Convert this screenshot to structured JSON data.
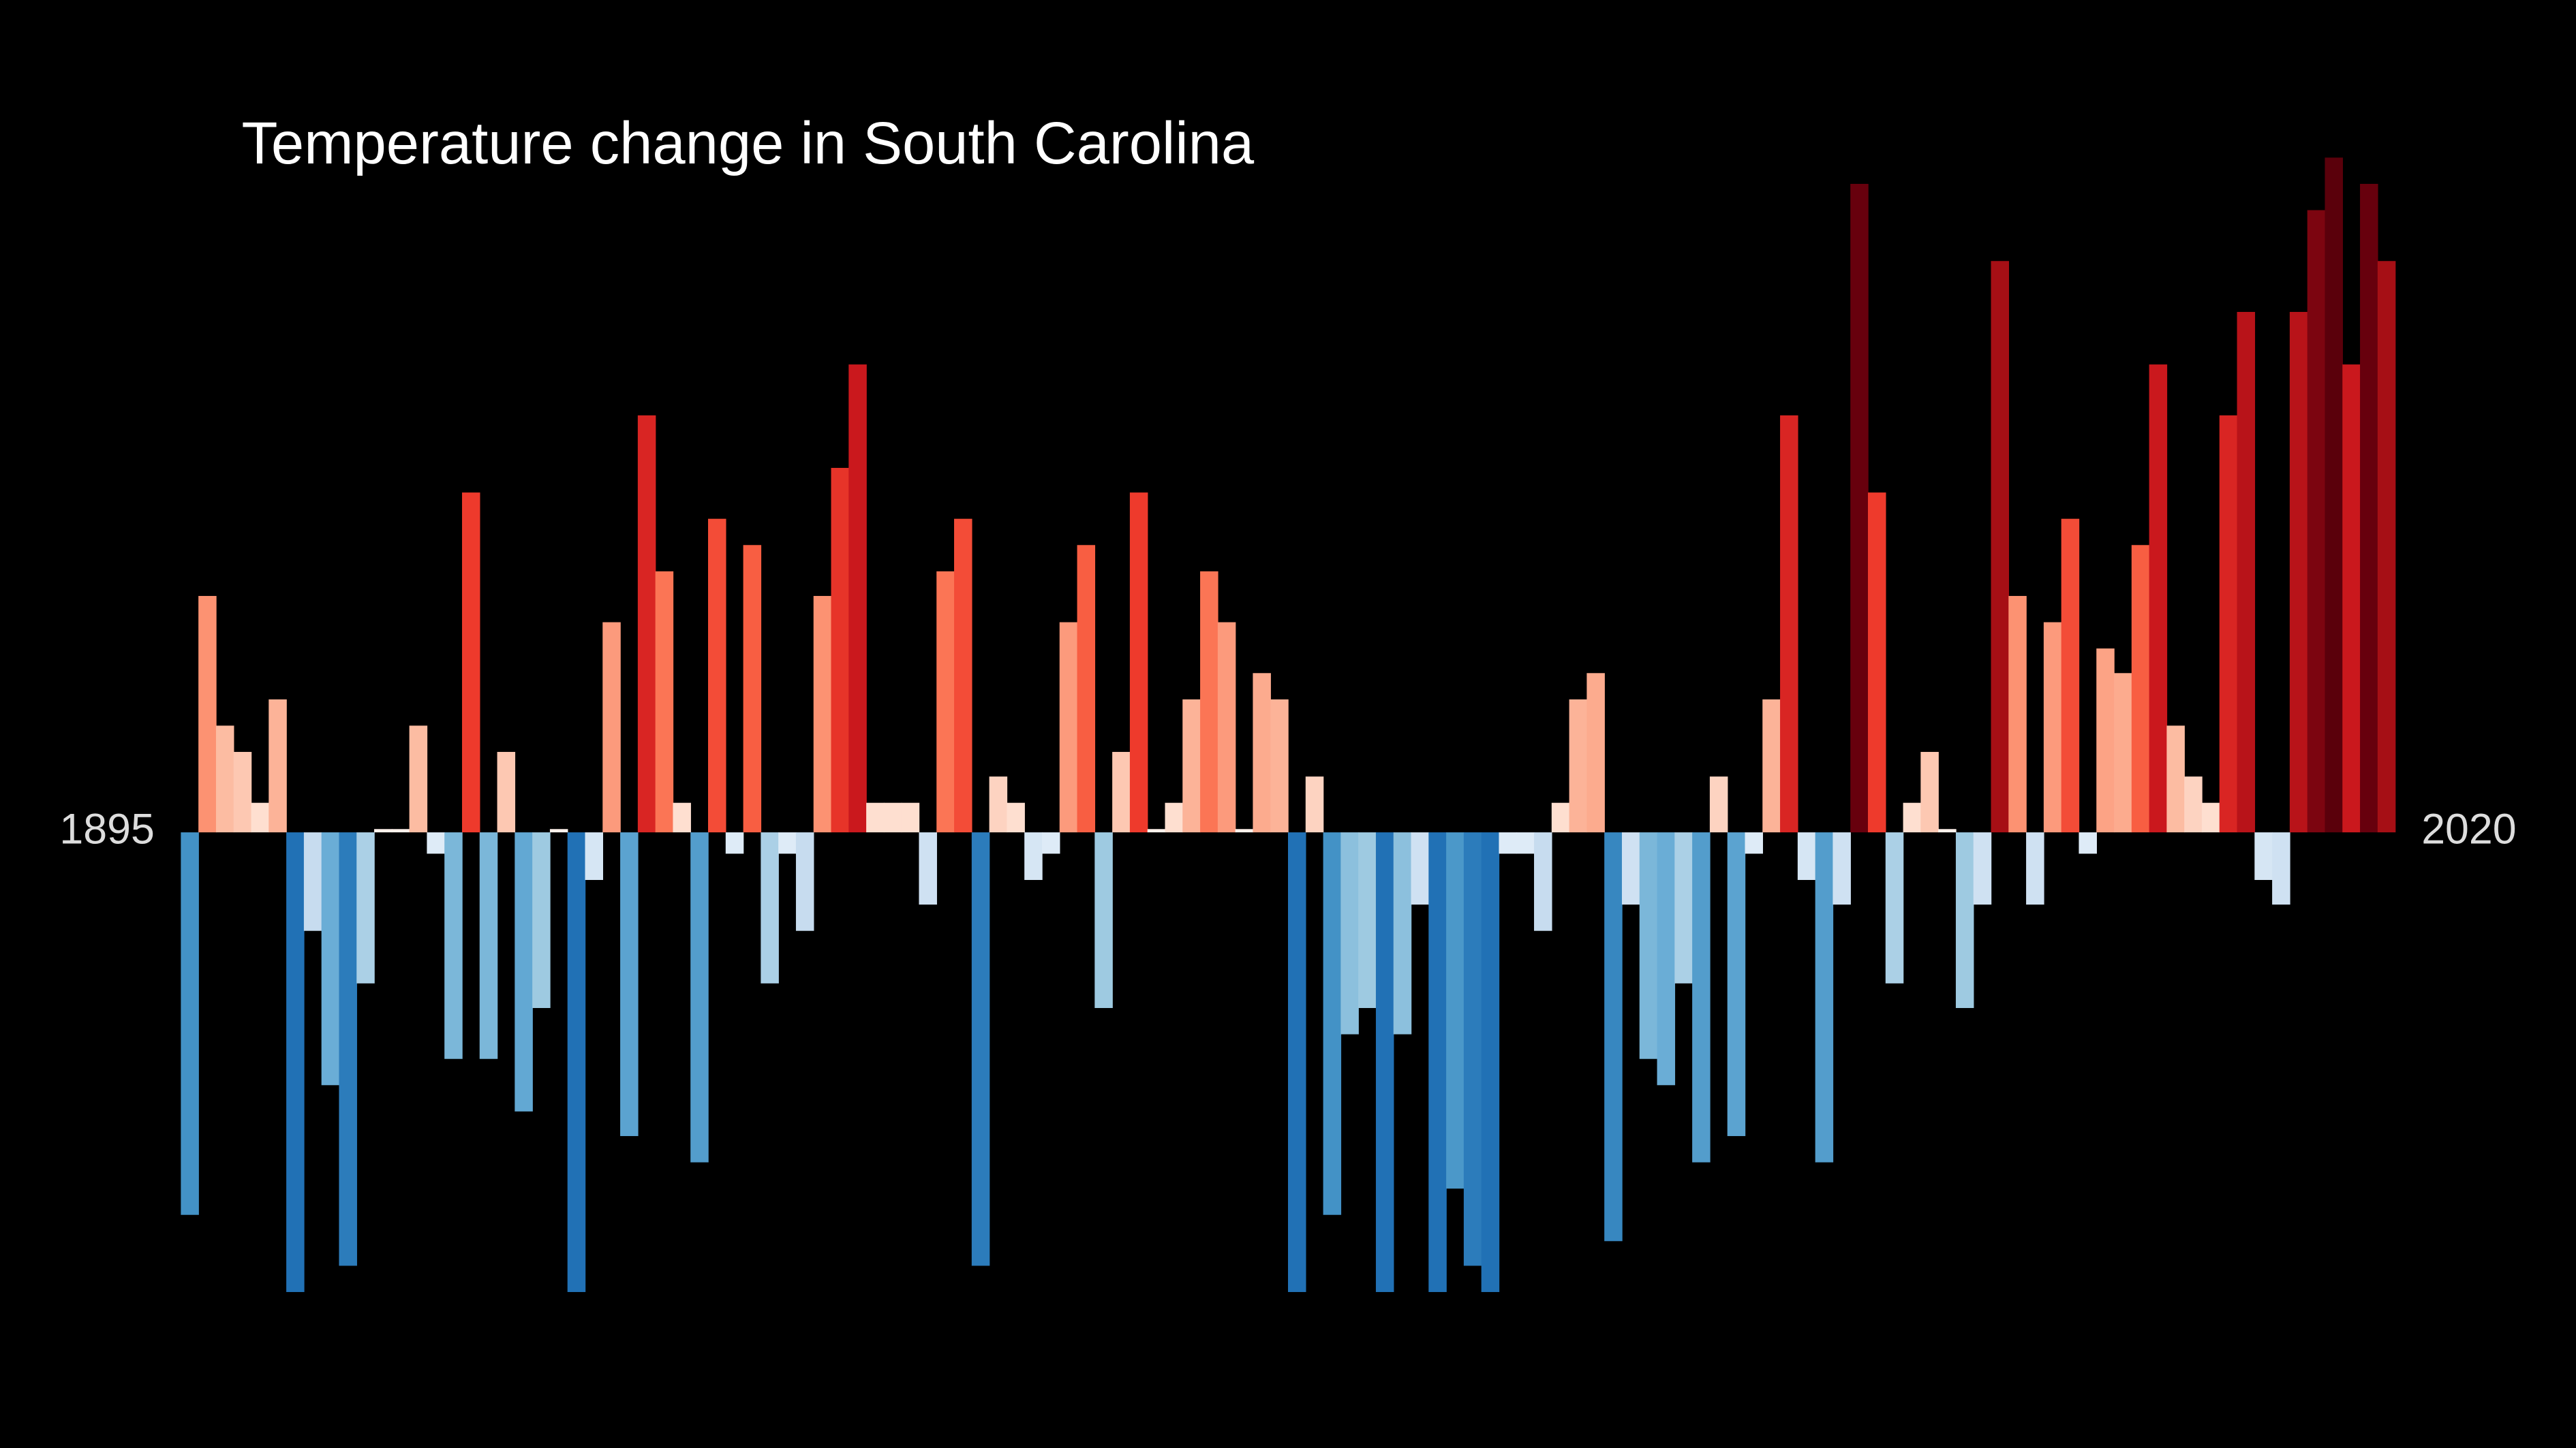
{
  "chart_data": {
    "type": "bar",
    "title": "Temperature change in South Carolina",
    "x": [
      1895,
      1896,
      1897,
      1898,
      1899,
      1900,
      1901,
      1902,
      1903,
      1904,
      1905,
      1906,
      1907,
      1908,
      1909,
      1910,
      1911,
      1912,
      1913,
      1914,
      1915,
      1916,
      1917,
      1918,
      1919,
      1920,
      1921,
      1922,
      1923,
      1924,
      1925,
      1926,
      1927,
      1928,
      1929,
      1930,
      1931,
      1932,
      1933,
      1934,
      1935,
      1936,
      1937,
      1938,
      1939,
      1940,
      1941,
      1942,
      1943,
      1944,
      1945,
      1946,
      1947,
      1948,
      1949,
      1950,
      1951,
      1952,
      1953,
      1954,
      1955,
      1956,
      1957,
      1958,
      1959,
      1960,
      1961,
      1962,
      1963,
      1964,
      1965,
      1966,
      1967,
      1968,
      1969,
      1970,
      1971,
      1972,
      1973,
      1974,
      1975,
      1976,
      1977,
      1978,
      1979,
      1980,
      1981,
      1982,
      1983,
      1984,
      1985,
      1986,
      1987,
      1988,
      1989,
      1990,
      1991,
      1992,
      1993,
      1994,
      1995,
      1996,
      1997,
      1998,
      1999,
      2000,
      2001,
      2002,
      2003,
      2004,
      2005,
      2006,
      2007,
      2008,
      2009,
      2010,
      2011,
      2012,
      2013,
      2014,
      2015,
      2016,
      2017,
      2018,
      2019,
      2020
    ],
    "values": [
      -2.33,
      1.44,
      0.65,
      0.49,
      0.18,
      0.81,
      -2.8,
      -0.6,
      -1.54,
      -2.64,
      -0.92,
      0.02,
      0.02,
      0.65,
      -0.13,
      -1.38,
      2.07,
      -1.38,
      0.49,
      -1.7,
      -1.07,
      0.02,
      -2.8,
      -0.29,
      1.28,
      -1.85,
      2.54,
      1.59,
      0.18,
      -2.01,
      1.91,
      -0.13,
      1.75,
      -0.92,
      -0.13,
      -0.6,
      1.44,
      2.22,
      2.85,
      0.18,
      0.18,
      0.18,
      -0.44,
      1.59,
      1.91,
      -2.64,
      0.34,
      0.18,
      -0.29,
      -0.13,
      1.28,
      1.75,
      -1.07,
      0.49,
      2.07,
      0.02,
      0.18,
      0.81,
      1.59,
      1.28,
      0.02,
      0.97,
      0.81,
      -2.8,
      0.34,
      -2.33,
      -1.23,
      -1.07,
      -2.8,
      -1.23,
      -0.44,
      -2.8,
      -2.17,
      -2.64,
      -2.8,
      -0.13,
      -0.13,
      -0.6,
      0.18,
      0.81,
      0.97,
      -2.49,
      -0.44,
      -1.38,
      -1.54,
      -0.92,
      -2.01,
      0.34,
      -1.85,
      -0.13,
      0.81,
      2.54,
      -0.29,
      -2.01,
      -0.44,
      3.95,
      2.07,
      -0.92,
      0.18,
      0.49,
      0.02,
      -1.07,
      -0.44,
      3.48,
      1.44,
      -0.44,
      1.28,
      1.91,
      -0.13,
      1.12,
      0.97,
      1.75,
      2.85,
      0.65,
      0.34,
      0.18,
      2.54,
      3.17,
      -0.29,
      -0.44,
      3.17,
      3.79,
      4.11,
      2.85,
      3.95,
      3.48
    ],
    "xlim": [
      1894.5,
      2020.5
    ],
    "ylim": [
      -2.8,
      4.11
    ],
    "xticks": [
      1895,
      2020
    ]
  }
}
